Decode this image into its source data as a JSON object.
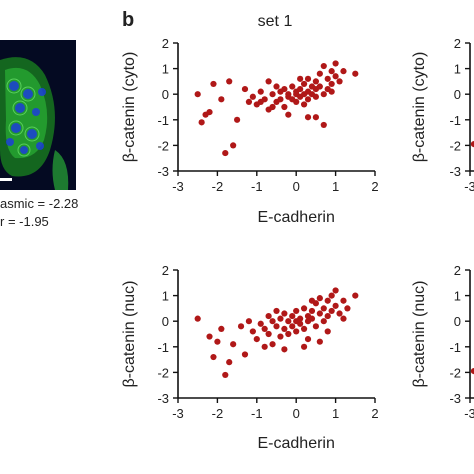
{
  "figure": {
    "panel_letter": "b",
    "set_title": "set 1",
    "left_annotations": [
      "asmic = -2.28",
      "r = -1.95"
    ]
  },
  "colors": {
    "points": "#b01818",
    "axis": "#111111",
    "micrograph_bg": "#040a22",
    "micrograph_green": "#2fc53a",
    "micrograph_nuclei": "#1c3fd8"
  },
  "chart_data": [
    {
      "type": "scatter",
      "title": "set 1",
      "xlabel": "E-cadherin",
      "ylabel": "β-catenin (cyto)",
      "xlim": [
        -3,
        2
      ],
      "ylim": [
        -3,
        2
      ],
      "xticks": [
        "-3",
        "-2",
        "-1",
        "0",
        "1",
        "2"
      ],
      "yticks": [
        "2",
        "1",
        "0",
        "-1",
        "-2",
        "-3"
      ],
      "series": [
        {
          "points": [
            [
              -2.5,
              0.0
            ],
            [
              -2.2,
              -0.7
            ],
            [
              -2.4,
              -1.1
            ],
            [
              -2.3,
              -0.8
            ],
            [
              -2.1,
              0.4
            ],
            [
              -1.9,
              -0.2
            ],
            [
              -1.7,
              0.5
            ],
            [
              -1.8,
              -2.3
            ],
            [
              -1.6,
              -2.0
            ],
            [
              -1.5,
              -1.0
            ],
            [
              -1.3,
              0.2
            ],
            [
              -1.2,
              -0.3
            ],
            [
              -1.1,
              -0.1
            ],
            [
              -1.0,
              -0.4
            ],
            [
              -0.9,
              0.1
            ],
            [
              -0.8,
              -0.2
            ],
            [
              -0.7,
              0.5
            ],
            [
              -0.7,
              -0.6
            ],
            [
              -0.6,
              0.0
            ],
            [
              -0.5,
              0.3
            ],
            [
              -0.5,
              -0.3
            ],
            [
              -0.4,
              0.1
            ],
            [
              -0.4,
              -0.2
            ],
            [
              -0.3,
              0.2
            ],
            [
              -0.3,
              -0.5
            ],
            [
              -0.2,
              0.0
            ],
            [
              -0.2,
              -0.1
            ],
            [
              -0.1,
              0.3
            ],
            [
              -0.1,
              -0.2
            ],
            [
              0.0,
              0.0
            ],
            [
              0.0,
              0.1
            ],
            [
              0.0,
              -0.3
            ],
            [
              0.1,
              0.2
            ],
            [
              0.1,
              -0.1
            ],
            [
              0.2,
              0.0
            ],
            [
              0.2,
              0.4
            ],
            [
              0.2,
              -0.4
            ],
            [
              0.3,
              0.1
            ],
            [
              0.3,
              -0.2
            ],
            [
              0.3,
              0.6
            ],
            [
              0.4,
              0.3
            ],
            [
              0.4,
              0.0
            ],
            [
              0.5,
              0.5
            ],
            [
              0.5,
              -0.1
            ],
            [
              0.5,
              0.2
            ],
            [
              0.6,
              0.8
            ],
            [
              0.6,
              0.3
            ],
            [
              0.7,
              0.0
            ],
            [
              0.7,
              1.1
            ],
            [
              0.8,
              0.6
            ],
            [
              0.8,
              0.2
            ],
            [
              0.9,
              0.9
            ],
            [
              0.9,
              0.4
            ],
            [
              1.0,
              0.7
            ],
            [
              1.0,
              1.2
            ],
            [
              1.1,
              0.5
            ],
            [
              1.2,
              0.9
            ],
            [
              1.5,
              0.8
            ],
            [
              0.5,
              -0.9
            ],
            [
              0.7,
              -1.2
            ],
            [
              -0.2,
              -0.8
            ],
            [
              0.3,
              -0.9
            ],
            [
              -0.6,
              -0.5
            ],
            [
              0.1,
              0.6
            ],
            [
              0.9,
              0.1
            ],
            [
              -0.9,
              -0.3
            ]
          ]
        }
      ]
    },
    {
      "type": "scatter",
      "title": "",
      "xlabel": "E-cadherin",
      "ylabel": "β-catenin (nuc)",
      "xlim": [
        -3,
        2
      ],
      "ylim": [
        -3,
        2
      ],
      "xticks": [
        "-3",
        "-2",
        "-1",
        "0",
        "1",
        "2"
      ],
      "yticks": [
        "2",
        "1",
        "0",
        "-1",
        "-2",
        "-3"
      ],
      "series": [
        {
          "points": [
            [
              -2.5,
              0.1
            ],
            [
              -2.2,
              -0.6
            ],
            [
              -2.1,
              -1.4
            ],
            [
              -2.0,
              -0.8
            ],
            [
              -1.9,
              -0.3
            ],
            [
              -1.8,
              -2.1
            ],
            [
              -1.7,
              -1.6
            ],
            [
              -1.6,
              -0.9
            ],
            [
              -1.4,
              -0.2
            ],
            [
              -1.3,
              -1.3
            ],
            [
              -1.2,
              0.0
            ],
            [
              -1.1,
              -0.4
            ],
            [
              -1.0,
              -0.7
            ],
            [
              -0.9,
              -0.1
            ],
            [
              -0.8,
              -0.3
            ],
            [
              -0.8,
              -1.0
            ],
            [
              -0.7,
              0.2
            ],
            [
              -0.7,
              -0.5
            ],
            [
              -0.6,
              0.0
            ],
            [
              -0.5,
              -0.2
            ],
            [
              -0.5,
              0.4
            ],
            [
              -0.4,
              -0.6
            ],
            [
              -0.4,
              0.1
            ],
            [
              -0.3,
              -0.3
            ],
            [
              -0.3,
              0.3
            ],
            [
              -0.2,
              0.0
            ],
            [
              -0.2,
              -0.5
            ],
            [
              -0.1,
              0.2
            ],
            [
              -0.1,
              -0.2
            ],
            [
              0.0,
              0.0
            ],
            [
              0.0,
              0.4
            ],
            [
              0.0,
              -0.4
            ],
            [
              0.1,
              0.1
            ],
            [
              0.1,
              -0.1
            ],
            [
              0.2,
              0.5
            ],
            [
              0.2,
              -0.3
            ],
            [
              0.3,
              0.2
            ],
            [
              0.3,
              0.0
            ],
            [
              0.3,
              -0.7
            ],
            [
              0.4,
              0.4
            ],
            [
              0.4,
              0.1
            ],
            [
              0.5,
              0.7
            ],
            [
              0.5,
              -0.2
            ],
            [
              0.6,
              0.3
            ],
            [
              0.6,
              0.9
            ],
            [
              0.7,
              0.5
            ],
            [
              0.7,
              0.0
            ],
            [
              0.8,
              0.8
            ],
            [
              0.8,
              0.2
            ],
            [
              0.9,
              1.0
            ],
            [
              0.9,
              0.4
            ],
            [
              1.0,
              0.6
            ],
            [
              1.0,
              1.2
            ],
            [
              1.1,
              0.3
            ],
            [
              1.2,
              0.8
            ],
            [
              1.3,
              0.5
            ],
            [
              1.5,
              1.0
            ],
            [
              0.6,
              -0.8
            ],
            [
              -0.3,
              -1.1
            ],
            [
              0.2,
              -1.0
            ],
            [
              0.8,
              -0.4
            ],
            [
              -0.6,
              -0.9
            ],
            [
              0.4,
              0.8
            ],
            [
              1.2,
              0.1
            ]
          ]
        }
      ]
    },
    {
      "type": "scatter",
      "title": "",
      "xlabel": "",
      "ylabel": "β-catenin (cyto)",
      "xlim": [
        -3,
        2
      ],
      "ylim": [
        -3,
        2
      ],
      "xticks": [
        "-3"
      ],
      "yticks": [
        "2",
        "1",
        "0",
        "-1",
        "-2",
        "-3"
      ],
      "series": [
        {
          "points": [
            [
              -2.9,
              -1.95
            ]
          ]
        }
      ]
    },
    {
      "type": "scatter",
      "title": "",
      "xlabel": "",
      "ylabel": "β-catenin (nuc)",
      "xlim": [
        -3,
        2
      ],
      "ylim": [
        -3,
        2
      ],
      "xticks": [
        "-3"
      ],
      "yticks": [
        "2",
        "1",
        "0",
        "-1",
        "-2",
        "-3"
      ],
      "series": [
        {
          "points": [
            [
              -2.9,
              -1.95
            ]
          ]
        }
      ]
    }
  ]
}
